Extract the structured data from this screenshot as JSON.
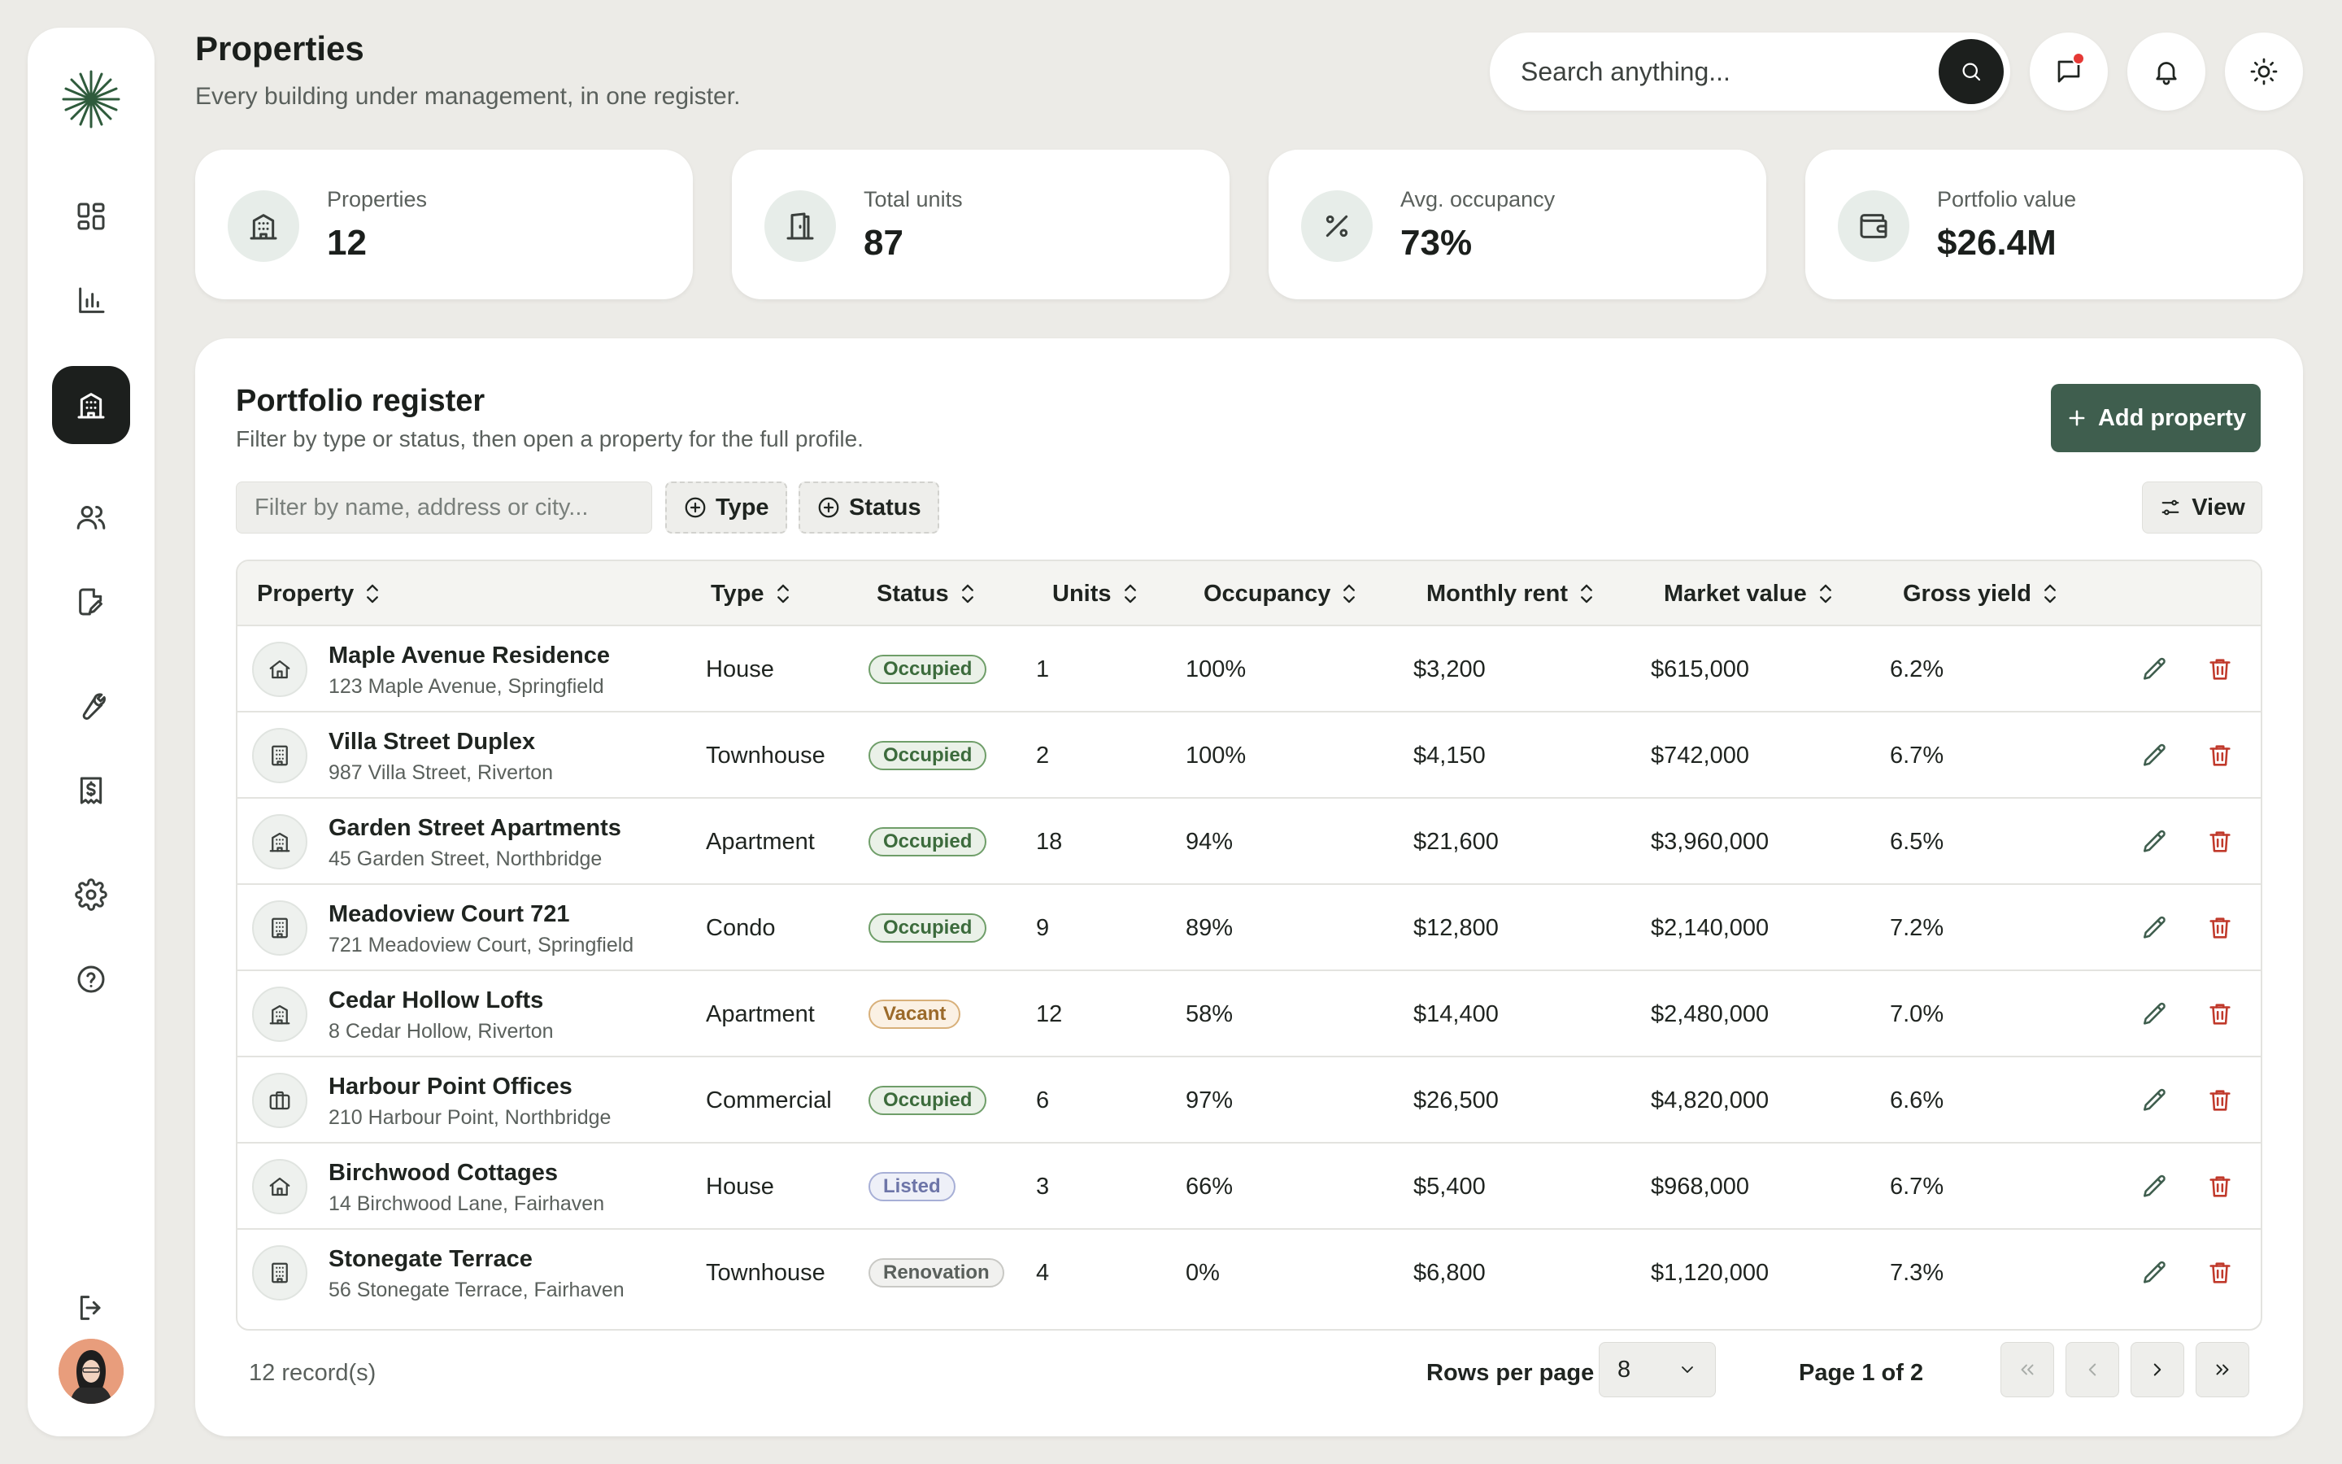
{
  "header": {
    "title": "Properties",
    "subtitle": "Every building under management, in one register.",
    "search_placeholder": "Search anything..."
  },
  "stats": [
    {
      "label": "Properties",
      "value": "12",
      "icon": "building-icon"
    },
    {
      "label": "Total units",
      "value": "87",
      "icon": "door-icon"
    },
    {
      "label": "Avg. occupancy",
      "value": "73%",
      "icon": "percent-icon"
    },
    {
      "label": "Portfolio value",
      "value": "$26.4M",
      "icon": "wallet-icon"
    }
  ],
  "register": {
    "title": "Portfolio register",
    "subtitle": "Filter by type or status, then open a property for the full profile.",
    "add_button": "Add property",
    "filter_placeholder": "Filter by name, address or city...",
    "type_chip": "Type",
    "status_chip": "Status",
    "view_button": "View",
    "columns": [
      "Property",
      "Type",
      "Status",
      "Units",
      "Occupancy",
      "Monthly rent",
      "Market value",
      "Gross yield"
    ],
    "rows": [
      {
        "name": "Maple Avenue Residence",
        "address": "123 Maple Avenue, Springfield",
        "type": "House",
        "status": "Occupied",
        "units": "1",
        "occupancy": "100%",
        "rent": "$3,200",
        "value": "$615,000",
        "yield": "6.2%",
        "icon": "house-icon"
      },
      {
        "name": "Villa Street Duplex",
        "address": "987 Villa Street, Riverton",
        "type": "Townhouse",
        "status": "Occupied",
        "units": "2",
        "occupancy": "100%",
        "rent": "$4,150",
        "value": "$742,000",
        "yield": "6.7%",
        "icon": "tower-icon"
      },
      {
        "name": "Garden Street Apartments",
        "address": "45 Garden Street, Northbridge",
        "type": "Apartment",
        "status": "Occupied",
        "units": "18",
        "occupancy": "94%",
        "rent": "$21,600",
        "value": "$3,960,000",
        "yield": "6.5%",
        "icon": "apartment-icon"
      },
      {
        "name": "Meadoview Court 721",
        "address": "721 Meadoview Court, Springfield",
        "type": "Condo",
        "status": "Occupied",
        "units": "9",
        "occupancy": "89%",
        "rent": "$12,800",
        "value": "$2,140,000",
        "yield": "7.2%",
        "icon": "tower-icon"
      },
      {
        "name": "Cedar Hollow Lofts",
        "address": "8 Cedar Hollow, Riverton",
        "type": "Apartment",
        "status": "Vacant",
        "units": "12",
        "occupancy": "58%",
        "rent": "$14,400",
        "value": "$2,480,000",
        "yield": "7.0%",
        "icon": "apartment-icon"
      },
      {
        "name": "Harbour Point Offices",
        "address": "210 Harbour Point, Northbridge",
        "type": "Commercial",
        "status": "Occupied",
        "units": "6",
        "occupancy": "97%",
        "rent": "$26,500",
        "value": "$4,820,000",
        "yield": "6.6%",
        "icon": "briefcase-icon"
      },
      {
        "name": "Birchwood Cottages",
        "address": "14 Birchwood Lane, Fairhaven",
        "type": "House",
        "status": "Listed",
        "units": "3",
        "occupancy": "66%",
        "rent": "$5,400",
        "value": "$968,000",
        "yield": "6.7%",
        "icon": "house-icon"
      },
      {
        "name": "Stonegate Terrace",
        "address": "56 Stonegate Terrace, Fairhaven",
        "type": "Townhouse",
        "status": "Renovation",
        "units": "4",
        "occupancy": "0%",
        "rent": "$6,800",
        "value": "$1,120,000",
        "yield": "7.3%",
        "icon": "tower-icon"
      }
    ]
  },
  "footer": {
    "records": "12 record(s)",
    "rows_per_page_label": "Rows per page",
    "rows_per_page_value": "8",
    "page_info": "Page 1 of 2"
  },
  "colors": {
    "accent": "#3f5e4e",
    "dark": "#1c1f1d",
    "delete": "#c0392b",
    "background": "#ecebe7"
  }
}
